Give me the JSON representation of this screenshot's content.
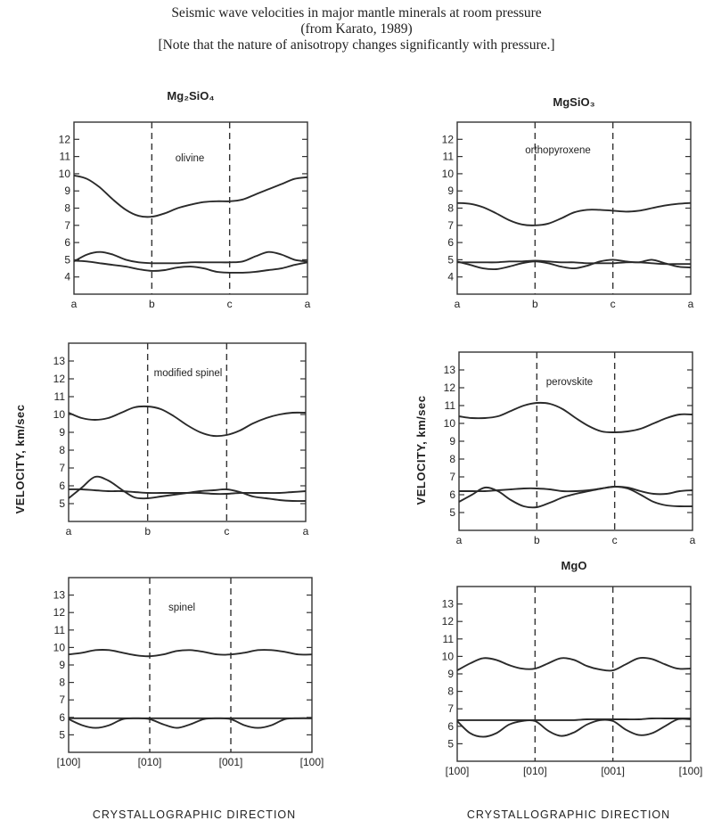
{
  "header": {
    "line1": "Seismic wave velocities in major mantle minerals at room pressure",
    "line2": "(from Karato, 1989)",
    "line3": "[Note that the nature of anisotropy changes significantly with pressure.]"
  },
  "axis_labels": {
    "y_left": "VELOCITY, km/sec",
    "y_right": "VELOCITY, km/sec",
    "x_left": "CRYSTALLOGRAPHIC DIRECTION",
    "x_right": "CRYSTALLOGRAPHIC DIRECTION"
  },
  "chart_data": [
    {
      "type": "line",
      "title": "Mg₂SiO₄",
      "mineral": "olivine",
      "x_categories": [
        "a",
        "b",
        "c",
        "a"
      ],
      "x": [
        0,
        0.167,
        0.333,
        0.5,
        0.667,
        0.833,
        1,
        1.167,
        1.333,
        1.5,
        1.667,
        1.833,
        2,
        2.167,
        2.333,
        2.5,
        2.667,
        2.833,
        3
      ],
      "ylim": [
        3,
        13
      ],
      "yticks": [
        4,
        5,
        6,
        7,
        8,
        9,
        10,
        11,
        12
      ],
      "series": [
        {
          "values": [
            9.9,
            9.7,
            9.2,
            8.5,
            7.9,
            7.55,
            7.5,
            7.7,
            8.0,
            8.2,
            8.35,
            8.4,
            8.4,
            8.5,
            8.8,
            9.1,
            9.4,
            9.7,
            9.8
          ]
        },
        {
          "values": [
            4.9,
            5.3,
            5.45,
            5.3,
            5.0,
            4.85,
            4.8,
            4.8,
            4.8,
            4.85,
            4.85,
            4.85,
            4.85,
            4.9,
            5.2,
            5.45,
            5.3,
            5.0,
            4.9
          ]
        },
        {
          "values": [
            4.95,
            4.9,
            4.8,
            4.7,
            4.6,
            4.45,
            4.35,
            4.4,
            4.55,
            4.6,
            4.5,
            4.3,
            4.25,
            4.25,
            4.3,
            4.4,
            4.5,
            4.7,
            4.85
          ]
        }
      ]
    },
    {
      "type": "line",
      "title": "MgSiO₃",
      "mineral": "orthopyroxene",
      "x_categories": [
        "a",
        "b",
        "c",
        "a"
      ],
      "x": [
        0,
        0.167,
        0.333,
        0.5,
        0.667,
        0.833,
        1,
        1.167,
        1.333,
        1.5,
        1.667,
        1.833,
        2,
        2.167,
        2.333,
        2.5,
        2.667,
        2.833,
        3
      ],
      "ylim": [
        3,
        13
      ],
      "yticks": [
        4,
        5,
        6,
        7,
        8,
        9,
        10,
        11,
        12
      ],
      "series": [
        {
          "values": [
            8.3,
            8.25,
            8.05,
            7.7,
            7.3,
            7.05,
            7.0,
            7.1,
            7.4,
            7.75,
            7.9,
            7.9,
            7.85,
            7.8,
            7.85,
            8.0,
            8.15,
            8.25,
            8.3
          ]
        },
        {
          "values": [
            4.85,
            4.85,
            4.85,
            4.85,
            4.9,
            4.9,
            4.95,
            4.9,
            4.85,
            4.85,
            4.8,
            4.8,
            4.8,
            4.85,
            4.85,
            4.8,
            4.75,
            4.75,
            4.75
          ]
        },
        {
          "values": [
            4.9,
            4.7,
            4.5,
            4.45,
            4.6,
            4.8,
            4.9,
            4.8,
            4.6,
            4.5,
            4.65,
            4.9,
            5.0,
            4.9,
            4.85,
            5.0,
            4.8,
            4.6,
            4.55
          ]
        }
      ]
    },
    {
      "type": "line",
      "title": "",
      "mineral": "modified spinel",
      "x_categories": [
        "a",
        "b",
        "c",
        "a"
      ],
      "x": [
        0,
        0.167,
        0.333,
        0.5,
        0.667,
        0.833,
        1,
        1.167,
        1.333,
        1.5,
        1.667,
        1.833,
        2,
        2.167,
        2.333,
        2.5,
        2.667,
        2.833,
        3
      ],
      "ylim": [
        4,
        14
      ],
      "yticks": [
        5,
        6,
        7,
        8,
        9,
        10,
        11,
        12,
        13
      ],
      "series": [
        {
          "values": [
            10.1,
            9.8,
            9.7,
            9.8,
            10.1,
            10.4,
            10.45,
            10.3,
            9.9,
            9.4,
            9.0,
            8.8,
            8.85,
            9.1,
            9.5,
            9.8,
            10.0,
            10.1,
            10.1
          ]
        },
        {
          "values": [
            5.8,
            5.8,
            5.75,
            5.7,
            5.7,
            5.65,
            5.6,
            5.6,
            5.6,
            5.6,
            5.6,
            5.55,
            5.55,
            5.6,
            5.6,
            5.6,
            5.6,
            5.65,
            5.7
          ]
        },
        {
          "values": [
            5.3,
            5.9,
            6.5,
            6.3,
            5.8,
            5.35,
            5.3,
            5.4,
            5.5,
            5.6,
            5.7,
            5.75,
            5.8,
            5.65,
            5.4,
            5.3,
            5.2,
            5.15,
            5.15
          ]
        }
      ]
    },
    {
      "type": "line",
      "title": "",
      "mineral": "perovskite",
      "x_categories": [
        "a",
        "b",
        "c",
        "a"
      ],
      "x": [
        0,
        0.167,
        0.333,
        0.5,
        0.667,
        0.833,
        1,
        1.167,
        1.333,
        1.5,
        1.667,
        1.833,
        2,
        2.167,
        2.333,
        2.5,
        2.667,
        2.833,
        3
      ],
      "ylim": [
        4,
        14
      ],
      "yticks": [
        5,
        6,
        7,
        8,
        9,
        10,
        11,
        12,
        13
      ],
      "series": [
        {
          "values": [
            10.4,
            10.3,
            10.3,
            10.4,
            10.7,
            11.0,
            11.15,
            11.1,
            10.8,
            10.3,
            9.85,
            9.55,
            9.5,
            9.55,
            9.7,
            10.0,
            10.3,
            10.5,
            10.5
          ]
        },
        {
          "values": [
            6.2,
            6.2,
            6.2,
            6.25,
            6.3,
            6.35,
            6.35,
            6.3,
            6.2,
            6.2,
            6.25,
            6.35,
            6.45,
            6.4,
            6.2,
            6.05,
            6.05,
            6.2,
            6.25
          ]
        },
        {
          "values": [
            5.6,
            6.0,
            6.4,
            6.2,
            5.7,
            5.35,
            5.3,
            5.55,
            5.85,
            6.05,
            6.2,
            6.35,
            6.45,
            6.35,
            6.0,
            5.6,
            5.4,
            5.35,
            5.35
          ]
        }
      ]
    },
    {
      "type": "line",
      "title": "",
      "mineral": "spinel",
      "x_categories": [
        "[100]",
        "[010]",
        "[001]",
        "[100]"
      ],
      "x": [
        0,
        0.167,
        0.333,
        0.5,
        0.667,
        0.833,
        1,
        1.167,
        1.333,
        1.5,
        1.667,
        1.833,
        2,
        2.167,
        2.333,
        2.5,
        2.667,
        2.833,
        3
      ],
      "ylim": [
        4,
        14
      ],
      "yticks": [
        5,
        6,
        7,
        8,
        9,
        10,
        11,
        12,
        13
      ],
      "series": [
        {
          "values": [
            9.6,
            9.7,
            9.85,
            9.85,
            9.7,
            9.55,
            9.5,
            9.6,
            9.8,
            9.85,
            9.75,
            9.6,
            9.6,
            9.7,
            9.85,
            9.85,
            9.75,
            9.6,
            9.6
          ]
        },
        {
          "values": [
            5.95,
            5.95,
            5.95,
            5.95,
            5.95,
            5.95,
            5.95,
            5.95,
            5.95,
            5.95,
            5.95,
            5.95,
            5.95,
            5.95,
            5.95,
            5.95,
            5.95,
            5.95,
            5.95
          ]
        },
        {
          "values": [
            5.9,
            5.55,
            5.4,
            5.55,
            5.9,
            5.95,
            5.9,
            5.6,
            5.4,
            5.6,
            5.9,
            5.95,
            5.9,
            5.55,
            5.4,
            5.55,
            5.9,
            5.95,
            5.95
          ]
        }
      ]
    },
    {
      "type": "line",
      "title": "MgO",
      "mineral": "",
      "x_categories": [
        "[100]",
        "[010]",
        "[001]",
        "[100]"
      ],
      "x": [
        0,
        0.167,
        0.333,
        0.5,
        0.667,
        0.833,
        1,
        1.167,
        1.333,
        1.5,
        1.667,
        1.833,
        2,
        2.167,
        2.333,
        2.5,
        2.667,
        2.833,
        3
      ],
      "ylim": [
        4,
        14
      ],
      "yticks": [
        5,
        6,
        7,
        8,
        9,
        10,
        11,
        12,
        13
      ],
      "series": [
        {
          "values": [
            9.2,
            9.6,
            9.9,
            9.8,
            9.5,
            9.3,
            9.3,
            9.6,
            9.9,
            9.8,
            9.45,
            9.25,
            9.2,
            9.55,
            9.9,
            9.85,
            9.55,
            9.3,
            9.3
          ]
        },
        {
          "values": [
            6.35,
            6.35,
            6.35,
            6.35,
            6.35,
            6.35,
            6.35,
            6.35,
            6.35,
            6.35,
            6.4,
            6.4,
            6.4,
            6.4,
            6.4,
            6.45,
            6.45,
            6.45,
            6.45
          ]
        },
        {
          "values": [
            6.3,
            5.6,
            5.4,
            5.6,
            6.1,
            6.3,
            6.3,
            5.75,
            5.45,
            5.65,
            6.1,
            6.35,
            6.3,
            5.8,
            5.5,
            5.6,
            6.0,
            6.4,
            6.4
          ]
        }
      ]
    }
  ]
}
